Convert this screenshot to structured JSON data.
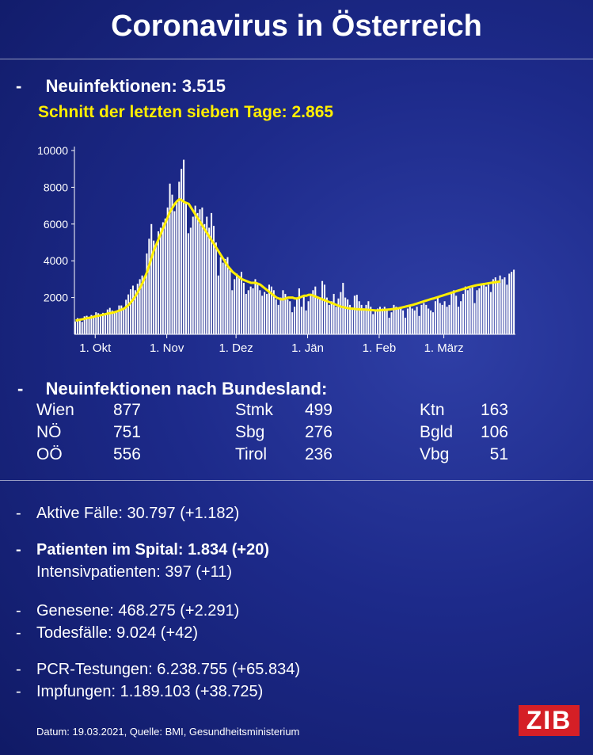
{
  "title": "Coronavirus in Österreich",
  "headline": {
    "dash": "-",
    "new_infections": "Neuinfektionen: 3.515",
    "seven_day_avg": "Schnitt der letzten sieben Tage: 2.865"
  },
  "chart_data": {
    "type": "bar",
    "title": "",
    "xlabel": "",
    "ylabel": "",
    "ylim": [
      0,
      10000
    ],
    "y_ticks": [
      "10000",
      "8000",
      "6000",
      "4000",
      "2000"
    ],
    "x_ticks": [
      "1. Okt",
      "1. Nov",
      "1. Dez",
      "1. Jän",
      "1. Feb",
      "1. März"
    ],
    "colors": {
      "bars": "#ffffff",
      "average_line": "#ffee00",
      "axis": "#ffffff"
    },
    "start_date": "2020-09-22",
    "series": [
      {
        "type": "bar",
        "values": [
          700,
          880,
          760,
          680,
          980,
          1010,
          900,
          1050,
          940,
          1200,
          1150,
          1100,
          1170,
          1080,
          1350,
          1440,
          1300,
          1250,
          1290,
          1570,
          1570,
          1400,
          1880,
          2170,
          2450,
          2650,
          2400,
          2750,
          3000,
          3200,
          3100,
          4400,
          5200,
          6000,
          5100,
          4800,
          5600,
          5800,
          6100,
          6300,
          6900,
          8200,
          7600,
          6700,
          7200,
          8300,
          9000,
          9500,
          7200,
          5500,
          5800,
          6400,
          7000,
          6600,
          6800,
          6900,
          6000,
          6400,
          5800,
          6600,
          5900,
          5000,
          3200,
          4200,
          3900,
          4100,
          4200,
          3500,
          2400,
          3000,
          3300,
          3100,
          3400,
          2800,
          2200,
          2400,
          2600,
          2500,
          3000,
          2700,
          2400,
          2100,
          2300,
          2200,
          2700,
          2600,
          2400,
          1900,
          1600,
          2000,
          2400,
          2200,
          1900,
          1800,
          1200,
          1500,
          2000,
          2500,
          1500,
          2100,
          1300,
          1800,
          2100,
          2400,
          2600,
          2000,
          1900,
          2900,
          2700,
          2000,
          1600,
          1800,
          2200,
          1500,
          1950,
          2300,
          2800,
          2000,
          1900,
          1600,
          1400,
          2100,
          2150,
          1800,
          1600,
          1300,
          1600,
          1800,
          1500,
          1100,
          1250,
          1400,
          1500,
          1400,
          1500,
          1300,
          900,
          1200,
          1600,
          1500,
          1400,
          1500,
          1300,
          900,
          1400,
          1500,
          1400,
          1300,
          1500,
          1000,
          1600,
          1700,
          1600,
          1400,
          1300,
          1200,
          1800,
          2000,
          1700,
          1600,
          1800,
          1500,
          1600,
          2300,
          2400,
          2100,
          1500,
          1800,
          2200,
          2600,
          2400,
          2500,
          2600,
          1700,
          2400,
          2500,
          2700,
          2800,
          2600,
          2700,
          2300,
          3000,
          3100,
          2900,
          3200,
          3000,
          3100,
          2700,
          3300,
          3400,
          3515
        ]
      },
      {
        "type": "line",
        "values": [
          750,
          770,
          800,
          820,
          850,
          880,
          900,
          920,
          960,
          990,
          1010,
          1040,
          1070,
          1100,
          1130,
          1150,
          1180,
          1210,
          1250,
          1300,
          1350,
          1400,
          1500,
          1600,
          1750,
          1900,
          2100,
          2300,
          2550,
          2800,
          3100,
          3400,
          3800,
          4200,
          4600,
          4900,
          5200,
          5500,
          5800,
          6100,
          6400,
          6700,
          6900,
          7100,
          7250,
          7350,
          7300,
          7200,
          7150,
          7100,
          6900,
          6700,
          6500,
          6300,
          6100,
          5900,
          5700,
          5500,
          5300,
          5100,
          4900,
          4700,
          4500,
          4300,
          4100,
          3900,
          3700,
          3550,
          3400,
          3300,
          3200,
          3100,
          3000,
          2950,
          2900,
          2850,
          2800,
          2800,
          2800,
          2750,
          2700,
          2600,
          2500,
          2400,
          2300,
          2200,
          2100,
          2000,
          1950,
          1900,
          1900,
          1950,
          2000,
          2000,
          2000,
          1950,
          1950,
          2000,
          2050,
          2100,
          2100,
          2150,
          2150,
          2100,
          2050,
          2000,
          1950,
          1900,
          1850,
          1800,
          1750,
          1700,
          1650,
          1600,
          1550,
          1500,
          1480,
          1450,
          1420,
          1400,
          1400,
          1380,
          1370,
          1360,
          1350,
          1350,
          1340,
          1330,
          1320,
          1310,
          1300,
          1300,
          1310,
          1320,
          1330,
          1340,
          1350,
          1370,
          1380,
          1400,
          1420,
          1450,
          1480,
          1510,
          1540,
          1570,
          1600,
          1640,
          1680,
          1720,
          1760,
          1800,
          1840,
          1880,
          1920,
          1950,
          1990,
          2030,
          2070,
          2110,
          2150,
          2190,
          2230,
          2270,
          2310,
          2350,
          2390,
          2430,
          2470,
          2510,
          2550,
          2590,
          2620,
          2650,
          2680,
          2700,
          2720,
          2740,
          2760,
          2780,
          2800,
          2820,
          2840,
          2860,
          2865
        ]
      }
    ],
    "grid": false
  },
  "bundesland": {
    "title": "Neuinfektionen nach Bundesland:",
    "dash": "-",
    "columns": [
      [
        {
          "name": "Wien",
          "value": "877"
        },
        {
          "name": "NÖ",
          "value": "751"
        },
        {
          "name": "OÖ",
          "value": "556"
        }
      ],
      [
        {
          "name": "Stmk",
          "value": "499"
        },
        {
          "name": "Sbg",
          "value": "276"
        },
        {
          "name": "Tirol",
          "value": "236"
        }
      ],
      [
        {
          "name": "Ktn",
          "value": "163"
        },
        {
          "name": "Bgld",
          "value": "106"
        },
        {
          "name": "Vbg",
          "value": "51"
        }
      ]
    ]
  },
  "stats": {
    "dash": "-",
    "active": "Aktive Fälle: 30.797 (+1.182)",
    "hospital": "Patienten im Spital: 1.834 (+20)",
    "icu": "Intensivpatienten: 397 (+11)",
    "recovered": "Genesene: 468.275 (+2.291)",
    "deaths": "Todesfälle: 9.024 (+42)",
    "pcr": "PCR-Testungen: 6.238.755 (+65.834)",
    "vaccinations": "Impfungen: 1.189.103 (+38.725)"
  },
  "footer": "Datum: 19.03.2021, Quelle: BMI, Gesundheitsministerium",
  "logo": "ZIB"
}
